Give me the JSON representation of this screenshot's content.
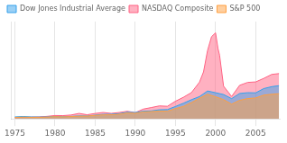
{
  "chart_data": {
    "type": "area",
    "xlim": [
      1974.5,
      2008
    ],
    "ylim": [
      0,
      5800
    ],
    "xticks": [
      1975,
      1980,
      1985,
      1990,
      1995,
      2000,
      2005
    ],
    "grid": "x",
    "legend": "upper left",
    "tick_labels": "x",
    "series": [
      {
        "name": "Dow Jones Industrial Average",
        "x": [
          1975,
          1976,
          1977,
          1978,
          1979,
          1980,
          1981,
          1982,
          1983,
          1984,
          1985,
          1986,
          1987,
          1988,
          1989,
          1990,
          1991,
          1992,
          1993,
          1994,
          1995,
          1996,
          1997,
          1998,
          1999,
          2000,
          2001,
          2002,
          2003,
          2004,
          2005,
          2006,
          2007,
          2007.9
        ],
        "values": [
          120,
          145,
          120,
          115,
          120,
          140,
          125,
          150,
          180,
          175,
          225,
          275,
          280,
          315,
          400,
          380,
          460,
          478,
          545,
          555,
          740,
          935,
          1145,
          1330,
          1665,
          1560,
          1452,
          1209,
          1515,
          1562,
          1553,
          1807,
          1922,
          1980
        ]
      },
      {
        "name": "NASDAQ Composite",
        "x": [
          1975,
          1976,
          1977,
          1978,
          1979,
          1980,
          1981,
          1982,
          1983,
          1984,
          1985,
          1986,
          1987,
          1988,
          1989,
          1990,
          1991,
          1992,
          1993,
          1994,
          1995,
          1996,
          1997,
          1998,
          1998.5,
          1999,
          1999.5,
          2000.0,
          2000.3,
          2000.5,
          2001,
          2002,
          2003,
          2004,
          2005,
          2006,
          2007,
          2007.9
        ],
        "values": [
          70,
          97,
          105,
          117,
          152,
          202,
          196,
          232,
          328,
          247,
          325,
          383,
          330,
          382,
          455,
          374,
          586,
          677,
          776,
          752,
          1052,
          1291,
          1570,
          2193,
          2800,
          4069,
          4900,
          5132,
          4200,
          3800,
          1950,
          1336,
          2003,
          2175,
          2205,
          2415,
          2652,
          2700
        ]
      },
      {
        "name": "S&P 500",
        "x": [
          1975,
          1976,
          1977,
          1978,
          1979,
          1980,
          1981,
          1982,
          1983,
          1984,
          1985,
          1986,
          1987,
          1988,
          1989,
          1990,
          1991,
          1992,
          1993,
          1994,
          1995,
          1996,
          1997,
          1998,
          1999,
          2000,
          2001,
          2002,
          2003,
          2004,
          2005,
          2006,
          2007,
          2007.9
        ],
        "values": [
          90,
          107,
          95,
          96,
          107,
          135,
          122,
          141,
          165,
          167,
          211,
          242,
          247,
          277,
          353,
          330,
          417,
          435,
          466,
          459,
          615,
          741,
          970,
          1229,
          1469,
          1320,
          1148,
          880,
          1112,
          1212,
          1248,
          1418,
          1468,
          1500
        ]
      }
    ]
  }
}
